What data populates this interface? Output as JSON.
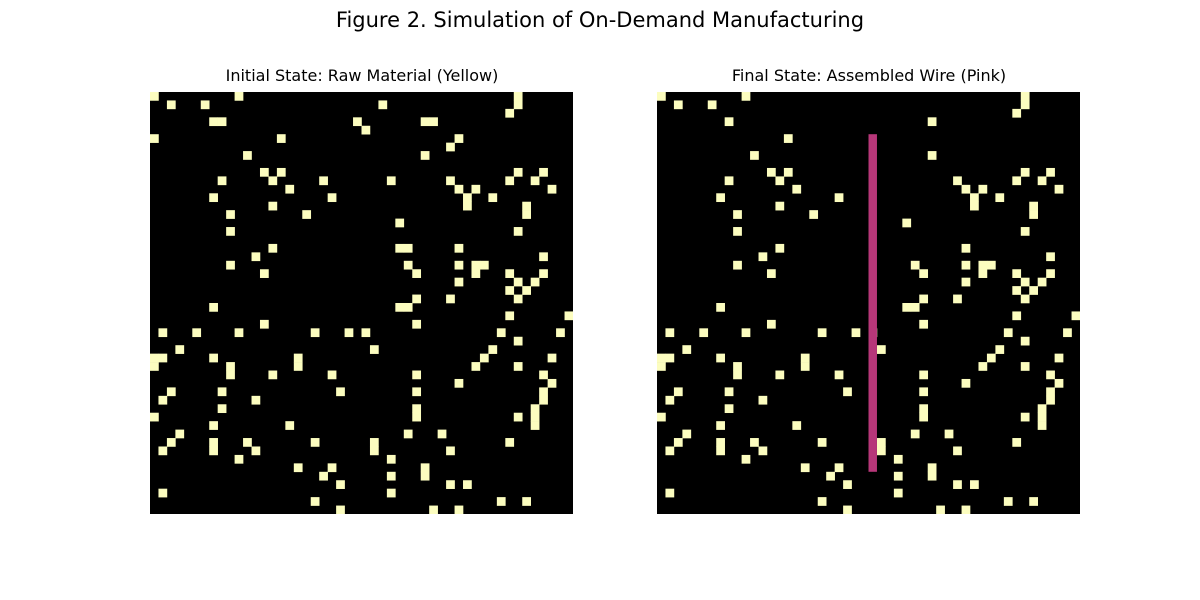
{
  "figure_title": "Figure 2. Simulation of On-Demand Manufacturing",
  "colors": {
    "background": "#000000",
    "material": "#fcfdbf",
    "wire": "#b73779"
  },
  "chart_data": [
    {
      "type": "heatmap",
      "title": "Initial State: Raw Material (Yellow)",
      "grid_size": [
        50,
        50
      ],
      "cell_values": {
        "0": "empty",
        "1": "raw material",
        "2": "wire"
      },
      "cells": [
        [
          0,
          0
        ],
        [
          0,
          10
        ],
        [
          0,
          43
        ],
        [
          1,
          2
        ],
        [
          1,
          6
        ],
        [
          1,
          27
        ],
        [
          1,
          43
        ],
        [
          2,
          42
        ],
        [
          3,
          7
        ],
        [
          3,
          8
        ],
        [
          3,
          24
        ],
        [
          3,
          32
        ],
        [
          3,
          33
        ],
        [
          4,
          25
        ],
        [
          5,
          0
        ],
        [
          5,
          15
        ],
        [
          5,
          36
        ],
        [
          6,
          35
        ],
        [
          7,
          11
        ],
        [
          7,
          32
        ],
        [
          9,
          13
        ],
        [
          9,
          15
        ],
        [
          9,
          43
        ],
        [
          9,
          46
        ],
        [
          10,
          8
        ],
        [
          10,
          14
        ],
        [
          10,
          20
        ],
        [
          10,
          28
        ],
        [
          10,
          35
        ],
        [
          10,
          42
        ],
        [
          10,
          45
        ],
        [
          11,
          16
        ],
        [
          11,
          47
        ],
        [
          11,
          36
        ],
        [
          11,
          38
        ],
        [
          12,
          7
        ],
        [
          12,
          21
        ],
        [
          12,
          37
        ],
        [
          12,
          40
        ],
        [
          13,
          14
        ],
        [
          13,
          37
        ],
        [
          13,
          44
        ],
        [
          14,
          9
        ],
        [
          14,
          18
        ],
        [
          14,
          44
        ],
        [
          15,
          29
        ],
        [
          16,
          9
        ],
        [
          16,
          43
        ],
        [
          18,
          29
        ],
        [
          18,
          14
        ],
        [
          18,
          36
        ],
        [
          18,
          30
        ],
        [
          19,
          12
        ],
        [
          19,
          46
        ],
        [
          20,
          9
        ],
        [
          20,
          30
        ],
        [
          20,
          36
        ],
        [
          20,
          38
        ],
        [
          20,
          39
        ],
        [
          21,
          13
        ],
        [
          21,
          31
        ],
        [
          21,
          38
        ],
        [
          21,
          42
        ],
        [
          21,
          46
        ],
        [
          22,
          36
        ],
        [
          22,
          45
        ],
        [
          22,
          43
        ],
        [
          23,
          42
        ],
        [
          23,
          44
        ],
        [
          23,
          42
        ],
        [
          24,
          31
        ],
        [
          24,
          35
        ],
        [
          24,
          43
        ],
        [
          25,
          7
        ],
        [
          25,
          29
        ],
        [
          25,
          30
        ],
        [
          26,
          42
        ],
        [
          26,
          49
        ],
        [
          27,
          31
        ],
        [
          27,
          13
        ],
        [
          28,
          1
        ],
        [
          28,
          5
        ],
        [
          28,
          10
        ],
        [
          28,
          19
        ],
        [
          28,
          23
        ],
        [
          28,
          25
        ],
        [
          28,
          41
        ],
        [
          28,
          48
        ],
        [
          29,
          43
        ],
        [
          30,
          3
        ],
        [
          30,
          26
        ],
        [
          30,
          40
        ],
        [
          31,
          0
        ],
        [
          31,
          1
        ],
        [
          31,
          7
        ],
        [
          31,
          17
        ],
        [
          31,
          39
        ],
        [
          31,
          47
        ],
        [
          32,
          0
        ],
        [
          32,
          9
        ],
        [
          32,
          17
        ],
        [
          32,
          38
        ],
        [
          32,
          43
        ],
        [
          33,
          9
        ],
        [
          33,
          14
        ],
        [
          33,
          21
        ],
        [
          33,
          31
        ],
        [
          33,
          46
        ],
        [
          34,
          36
        ],
        [
          34,
          47
        ],
        [
          35,
          2
        ],
        [
          35,
          8
        ],
        [
          35,
          22
        ],
        [
          35,
          31
        ],
        [
          35,
          46
        ],
        [
          36,
          1
        ],
        [
          36,
          12
        ],
        [
          36,
          46
        ],
        [
          37,
          8
        ],
        [
          37,
          31
        ],
        [
          37,
          45
        ],
        [
          38,
          0
        ],
        [
          38,
          31
        ],
        [
          38,
          43
        ],
        [
          38,
          45
        ],
        [
          39,
          7
        ],
        [
          39,
          16
        ],
        [
          39,
          45
        ],
        [
          40,
          3
        ],
        [
          40,
          30
        ],
        [
          40,
          34
        ],
        [
          41,
          2
        ],
        [
          41,
          7
        ],
        [
          41,
          11
        ],
        [
          41,
          19
        ],
        [
          41,
          26
        ],
        [
          41,
          42
        ],
        [
          42,
          1
        ],
        [
          42,
          7
        ],
        [
          42,
          12
        ],
        [
          42,
          26
        ],
        [
          42,
          35
        ],
        [
          43,
          10
        ],
        [
          43,
          28
        ],
        [
          44,
          17
        ],
        [
          44,
          21
        ],
        [
          44,
          32
        ],
        [
          45,
          20
        ],
        [
          45,
          28
        ],
        [
          45,
          32
        ],
        [
          46,
          22
        ],
        [
          46,
          35
        ],
        [
          46,
          37
        ],
        [
          47,
          1
        ],
        [
          47,
          28
        ],
        [
          48,
          19
        ],
        [
          48,
          41
        ],
        [
          48,
          44
        ],
        [
          49,
          22
        ],
        [
          49,
          33
        ],
        [
          49,
          36
        ]
      ]
    },
    {
      "type": "heatmap",
      "title": "Final State: Assembled Wire (Pink)",
      "grid_size": [
        50,
        50
      ],
      "cell_values": {
        "0": "empty",
        "1": "raw material",
        "2": "wire"
      },
      "cells": [
        [
          0,
          0
        ],
        [
          0,
          10
        ],
        [
          0,
          43
        ],
        [
          1,
          2
        ],
        [
          1,
          6
        ],
        [
          1,
          43
        ],
        [
          2,
          42
        ],
        [
          3,
          8
        ],
        [
          3,
          32
        ],
        [
          5,
          15
        ],
        [
          7,
          11
        ],
        [
          7,
          32
        ],
        [
          9,
          13
        ],
        [
          9,
          15
        ],
        [
          9,
          43
        ],
        [
          9,
          46
        ],
        [
          10,
          8
        ],
        [
          10,
          14
        ],
        [
          10,
          35
        ],
        [
          10,
          42
        ],
        [
          10,
          45
        ],
        [
          11,
          16
        ],
        [
          11,
          47
        ],
        [
          11,
          36
        ],
        [
          11,
          38
        ],
        [
          12,
          7
        ],
        [
          12,
          21
        ],
        [
          12,
          37
        ],
        [
          12,
          40
        ],
        [
          13,
          14
        ],
        [
          13,
          37
        ],
        [
          13,
          44
        ],
        [
          14,
          9
        ],
        [
          14,
          18
        ],
        [
          14,
          44
        ],
        [
          15,
          29
        ],
        [
          16,
          9
        ],
        [
          16,
          43
        ],
        [
          18,
          14
        ],
        [
          18,
          36
        ],
        [
          19,
          12
        ],
        [
          19,
          46
        ],
        [
          20,
          9
        ],
        [
          20,
          30
        ],
        [
          20,
          36
        ],
        [
          20,
          38
        ],
        [
          20,
          39
        ],
        [
          21,
          13
        ],
        [
          21,
          31
        ],
        [
          21,
          38
        ],
        [
          21,
          42
        ],
        [
          21,
          46
        ],
        [
          22,
          36
        ],
        [
          22,
          45
        ],
        [
          22,
          43
        ],
        [
          23,
          42
        ],
        [
          23,
          44
        ],
        [
          24,
          31
        ],
        [
          24,
          35
        ],
        [
          24,
          43
        ],
        [
          25,
          7
        ],
        [
          25,
          29
        ],
        [
          25,
          30
        ],
        [
          26,
          42
        ],
        [
          26,
          49
        ],
        [
          27,
          31
        ],
        [
          27,
          13
        ],
        [
          28,
          1
        ],
        [
          28,
          5
        ],
        [
          28,
          10
        ],
        [
          28,
          19
        ],
        [
          28,
          23
        ],
        [
          28,
          25
        ],
        [
          28,
          41
        ],
        [
          28,
          48
        ],
        [
          29,
          43
        ],
        [
          30,
          3
        ],
        [
          30,
          26
        ],
        [
          30,
          40
        ],
        [
          31,
          0
        ],
        [
          31,
          1
        ],
        [
          31,
          7
        ],
        [
          31,
          17
        ],
        [
          31,
          39
        ],
        [
          31,
          47
        ],
        [
          32,
          0
        ],
        [
          32,
          9
        ],
        [
          32,
          17
        ],
        [
          32,
          38
        ],
        [
          32,
          43
        ],
        [
          33,
          9
        ],
        [
          33,
          14
        ],
        [
          33,
          21
        ],
        [
          33,
          31
        ],
        [
          33,
          46
        ],
        [
          34,
          36
        ],
        [
          34,
          47
        ],
        [
          35,
          2
        ],
        [
          35,
          8
        ],
        [
          35,
          22
        ],
        [
          35,
          31
        ],
        [
          35,
          46
        ],
        [
          36,
          1
        ],
        [
          36,
          12
        ],
        [
          36,
          46
        ],
        [
          37,
          8
        ],
        [
          37,
          31
        ],
        [
          37,
          45
        ],
        [
          38,
          0
        ],
        [
          38,
          31
        ],
        [
          38,
          43
        ],
        [
          38,
          45
        ],
        [
          39,
          7
        ],
        [
          39,
          16
        ],
        [
          39,
          45
        ],
        [
          40,
          3
        ],
        [
          40,
          30
        ],
        [
          40,
          34
        ],
        [
          41,
          2
        ],
        [
          41,
          7
        ],
        [
          41,
          11
        ],
        [
          41,
          19
        ],
        [
          41,
          26
        ],
        [
          41,
          42
        ],
        [
          42,
          1
        ],
        [
          42,
          7
        ],
        [
          42,
          12
        ],
        [
          42,
          26
        ],
        [
          42,
          35
        ],
        [
          43,
          10
        ],
        [
          43,
          28
        ],
        [
          44,
          17
        ],
        [
          44,
          21
        ],
        [
          44,
          32
        ],
        [
          45,
          20
        ],
        [
          45,
          28
        ],
        [
          45,
          32
        ],
        [
          46,
          22
        ],
        [
          46,
          35
        ],
        [
          46,
          37
        ],
        [
          47,
          1
        ],
        [
          47,
          28
        ],
        [
          48,
          19
        ],
        [
          48,
          41
        ],
        [
          48,
          44
        ],
        [
          49,
          22
        ],
        [
          49,
          33
        ],
        [
          49,
          36
        ]
      ],
      "wire": {
        "column": 25,
        "row_start": 5,
        "row_end": 44
      }
    }
  ]
}
